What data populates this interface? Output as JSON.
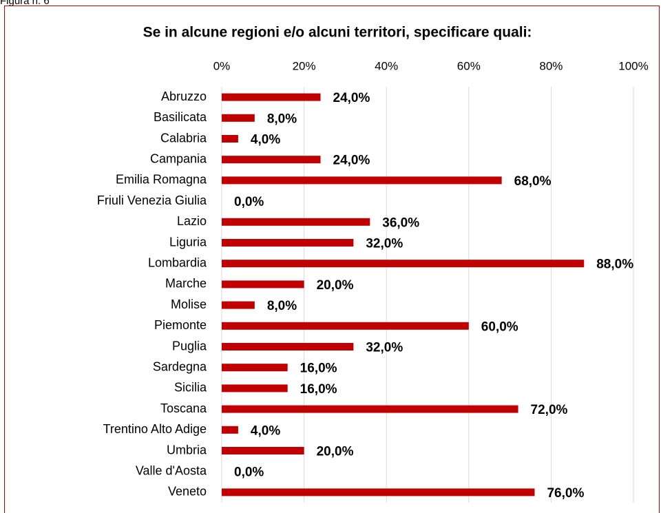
{
  "figure_label": "Figura n. 6",
  "chart_data": {
    "type": "hbar",
    "title": "Se in alcune regioni e/o alcuni territori, specificare quali:",
    "categories": [
      "Abruzzo",
      "Basilicata",
      "Calabria",
      "Campania",
      "Emilia Romagna",
      "Friuli Venezia Giulia",
      "Lazio",
      "Liguria",
      "Lombardia",
      "Marche",
      "Molise",
      "Piemonte",
      "Puglia",
      "Sardegna",
      "Sicilia",
      "Toscana",
      "Trentino Alto Adige",
      "Umbria",
      "Valle d'Aosta",
      "Veneto"
    ],
    "values": [
      24,
      8,
      4,
      24,
      68,
      0,
      36,
      32,
      88,
      20,
      8,
      60,
      32,
      16,
      16,
      72,
      4,
      20,
      0,
      76
    ],
    "value_labels": [
      "24,0%",
      "8,0%",
      "4,0%",
      "24,0%",
      "68,0%",
      "0,0%",
      "36,0%",
      "32,0%",
      "88,0%",
      "20,0%",
      "8,0%",
      "60,0%",
      "32,0%",
      "16,0%",
      "16,0%",
      "72,0%",
      "4,0%",
      "20,0%",
      "0,0%",
      "76,0%"
    ],
    "color": "#c00000",
    "xlim": [
      0,
      100
    ],
    "xticks": [
      {
        "value": 0,
        "label": "0%"
      },
      {
        "value": 20,
        "label": "20%"
      },
      {
        "value": 40,
        "label": "40%"
      },
      {
        "value": 60,
        "label": "60%"
      },
      {
        "value": 80,
        "label": "80%"
      },
      {
        "value": 100,
        "label": "100%"
      }
    ],
    "grid": true
  }
}
